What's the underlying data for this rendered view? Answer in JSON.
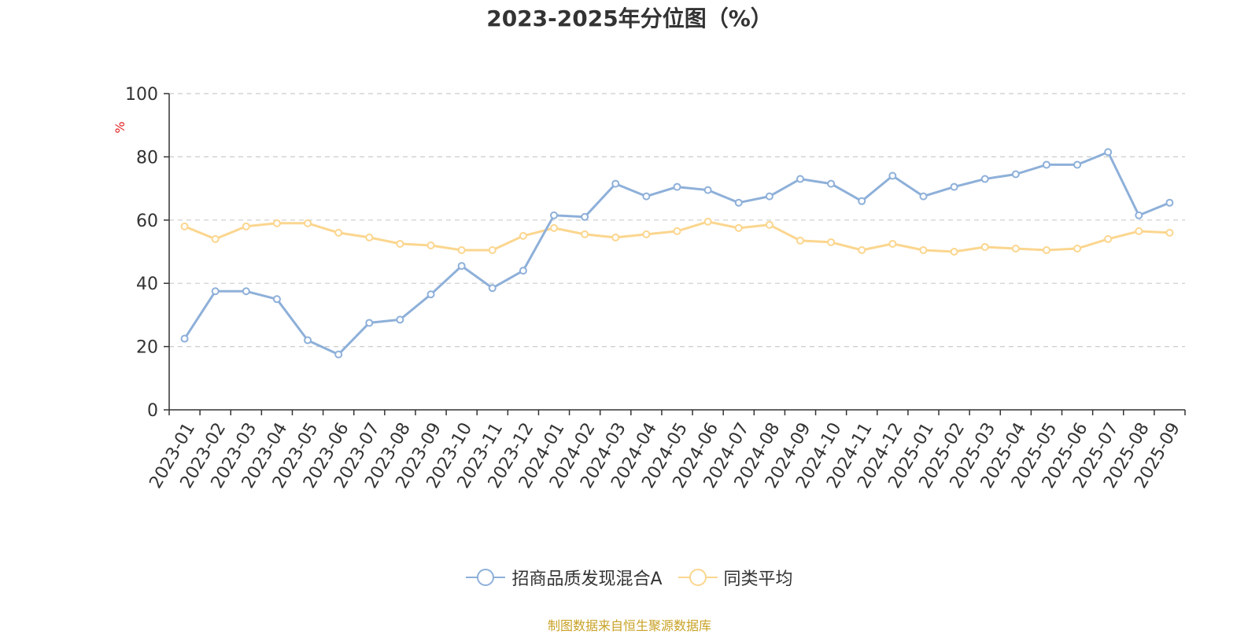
{
  "chart_data": {
    "type": "line",
    "title": "2023-2025年分位图（%）",
    "ylabel": "%",
    "ylim": [
      0,
      100
    ],
    "yticks": [
      0,
      20,
      40,
      60,
      80,
      100
    ],
    "grid": true,
    "legend_position": "bottom",
    "categories": [
      "2023-01",
      "2023-02",
      "2023-03",
      "2023-04",
      "2023-05",
      "2023-06",
      "2023-07",
      "2023-08",
      "2023-09",
      "2023-10",
      "2023-11",
      "2023-12",
      "2024-01",
      "2024-02",
      "2024-03",
      "2024-04",
      "2024-05",
      "2024-06",
      "2024-07",
      "2024-08",
      "2024-09",
      "2024-10",
      "2024-11",
      "2024-12",
      "2025-01",
      "2025-02",
      "2025-03",
      "2025-04",
      "2025-05",
      "2025-06",
      "2025-07",
      "2025-08",
      "2025-09"
    ],
    "series": [
      {
        "name": "招商品质发现混合A",
        "color": "#8eb0d9",
        "values": [
          22.5,
          37.5,
          37.5,
          35.0,
          22.0,
          17.5,
          27.5,
          28.5,
          36.5,
          45.5,
          38.5,
          44.0,
          61.5,
          61.0,
          71.5,
          67.5,
          70.5,
          69.5,
          65.5,
          67.5,
          73.0,
          71.5,
          66.0,
          74.0,
          67.5,
          70.5,
          73.0,
          74.5,
          77.5,
          77.5,
          81.5,
          61.5,
          65.5
        ]
      },
      {
        "name": "同类平均",
        "color": "#fbd68f",
        "values": [
          58.0,
          54.0,
          58.0,
          59.0,
          59.0,
          56.0,
          54.5,
          52.5,
          52.0,
          50.5,
          50.5,
          55.0,
          57.5,
          55.5,
          54.5,
          55.5,
          56.5,
          59.5,
          57.5,
          58.5,
          53.5,
          53.0,
          50.5,
          52.5,
          50.5,
          50.0,
          51.5,
          51.0,
          50.5,
          51.0,
          54.0,
          56.5,
          56.0
        ]
      }
    ]
  },
  "footer": {
    "source": "制图数据来自恒生聚源数据库"
  }
}
